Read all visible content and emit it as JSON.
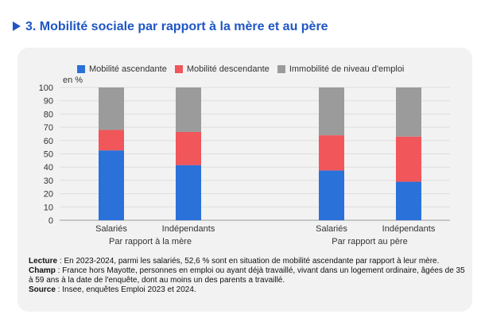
{
  "header": {
    "title": "3. Mobilité sociale par rapport à la mère et au père"
  },
  "chart_data": {
    "type": "bar",
    "stacked": true,
    "yunit": "en %",
    "ylim": [
      0,
      100
    ],
    "yticks": [
      0,
      10,
      20,
      30,
      40,
      50,
      60,
      70,
      80,
      90,
      100
    ],
    "legend_position": "top",
    "groups": [
      {
        "label": "Par rapport à la mère",
        "categories": [
          "Salariés",
          "Indépendants"
        ]
      },
      {
        "label": "Par rapport au père",
        "categories": [
          "Salariés",
          "Indépendants"
        ]
      }
    ],
    "series": [
      {
        "name": "Mobilité ascendante",
        "color": "#2a71d9",
        "values": [
          52.6,
          41.5,
          37.5,
          29.0
        ]
      },
      {
        "name": "Mobilité descendante",
        "color": "#f0565a",
        "values": [
          15.4,
          25.0,
          26.5,
          34.0
        ]
      },
      {
        "name": "Immobilité de niveau d'emploi",
        "color": "#9b9b9b",
        "values": [
          32.0,
          33.5,
          36.0,
          37.0
        ]
      }
    ]
  },
  "notes": {
    "lecture_label": "Lecture",
    "lecture_text": " : En 2023-2024, parmi les salariés, 52,6 % sont en situation de mobilité ascendante par rapport à leur mère.",
    "champ_label": "Champ",
    "champ_text": " : France hors Mayotte, personnes en emploi ou ayant déjà travaillé, vivant dans un logement ordinaire, âgées de 35 à 59 ans à la date de l'enquête, dont au moins un des parents a travaillé.",
    "source_label": "Source",
    "source_text": " : Insee, enquêtes Emploi 2023 et 2024."
  }
}
